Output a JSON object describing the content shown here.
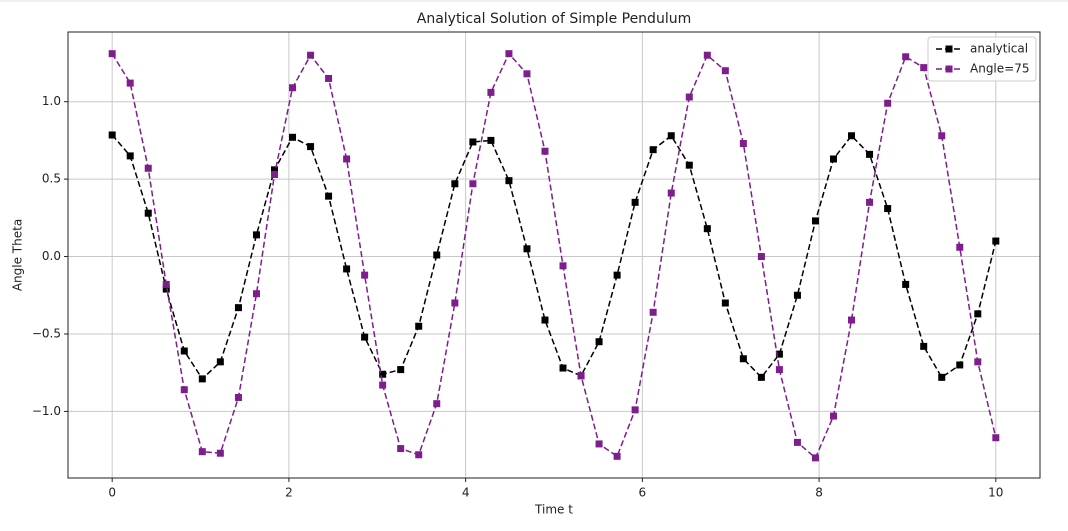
{
  "chart_data": {
    "type": "line",
    "title": "Analytical Solution of Simple Pendulum",
    "xlabel": "Time t",
    "ylabel": "Angle Theta",
    "x": [
      0,
      0.204,
      0.408,
      0.612,
      0.816,
      1.02,
      1.224,
      1.429,
      1.633,
      1.837,
      2.041,
      2.245,
      2.449,
      2.653,
      2.857,
      3.061,
      3.265,
      3.469,
      3.673,
      3.878,
      4.082,
      4.286,
      4.49,
      4.694,
      4.898,
      5.102,
      5.306,
      5.51,
      5.714,
      5.918,
      6.122,
      6.327,
      6.531,
      6.735,
      6.939,
      7.143,
      7.347,
      7.551,
      7.755,
      7.959,
      8.163,
      8.367,
      8.571,
      8.776,
      8.98,
      9.184,
      9.388,
      9.592,
      9.796,
      10
    ],
    "series": [
      {
        "name": "analytical",
        "color": "#000000",
        "values": [
          0.785,
          0.65,
          0.28,
          -0.21,
          -0.61,
          -0.79,
          -0.68,
          -0.33,
          0.14,
          0.56,
          0.77,
          0.71,
          0.39,
          -0.08,
          -0.52,
          -0.76,
          -0.73,
          -0.45,
          0.01,
          0.47,
          0.74,
          0.75,
          0.49,
          0.05,
          -0.41,
          -0.72,
          -0.77,
          -0.55,
          -0.12,
          0.35,
          0.69,
          0.78,
          0.59,
          0.18,
          -0.3,
          -0.66,
          -0.78,
          -0.63,
          -0.25,
          0.23,
          0.63,
          0.78,
          0.66,
          0.31,
          -0.18,
          -0.58,
          -0.78,
          -0.7,
          -0.37,
          0.1
        ]
      },
      {
        "name": "Angle=75",
        "color": "#7e1e8c",
        "values": [
          1.31,
          1.12,
          0.57,
          -0.18,
          -0.86,
          -1.26,
          -1.27,
          -0.91,
          -0.24,
          0.53,
          1.09,
          1.3,
          1.15,
          0.63,
          -0.12,
          -0.83,
          -1.24,
          -1.28,
          -0.95,
          -0.3,
          0.47,
          1.06,
          1.31,
          1.18,
          0.68,
          -0.06,
          -0.77,
          -1.21,
          -1.29,
          -0.99,
          -0.36,
          0.41,
          1.03,
          1.3,
          1.2,
          0.73,
          0.0,
          -0.73,
          -1.2,
          -1.3,
          -1.03,
          -0.41,
          0.35,
          0.99,
          1.29,
          1.22,
          0.78,
          0.06,
          -0.68,
          -1.17
        ]
      }
    ],
    "xlim": [
      -0.5,
      10.5
    ],
    "xticks": [
      0,
      2,
      4,
      6,
      8,
      10
    ],
    "ylim": [
      -1.43,
      1.45
    ],
    "yticks": [
      {
        "value": -1.0,
        "label": "−1.0"
      },
      {
        "value": -0.5,
        "label": "−0.5"
      },
      {
        "value": 0,
        "label": "0.0"
      },
      0.5,
      {
        "value": 1.0,
        "label": "1.0"
      }
    ],
    "grid": true,
    "legend": "upper right"
  }
}
